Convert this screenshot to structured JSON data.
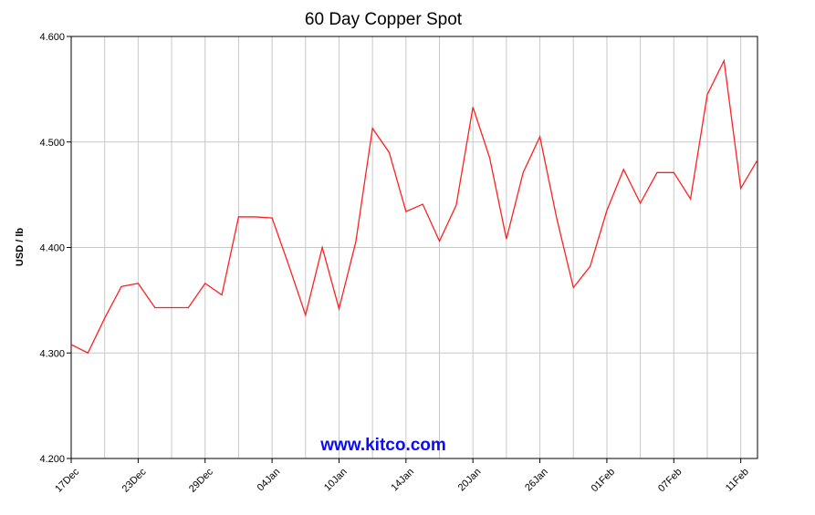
{
  "chart_data": {
    "type": "line",
    "title": "60 Day Copper Spot",
    "y_label": "USD / lb",
    "annotation": "www.kitco.com",
    "categories": [
      "17Dec",
      null,
      null,
      null,
      "23Dec",
      null,
      null,
      null,
      "29Dec",
      null,
      null,
      null,
      "04Jan",
      null,
      null,
      null,
      "10Jan",
      null,
      null,
      null,
      "14Jan",
      null,
      null,
      null,
      "20Jan",
      null,
      null,
      null,
      "26Jan",
      null,
      null,
      null,
      "01Feb",
      null,
      null,
      null,
      "07Feb",
      null,
      null,
      null,
      "11Feb",
      null
    ],
    "series": [
      {
        "name": "Copper",
        "color": "#ff2020",
        "values": [
          4.308,
          4.3,
          4.333,
          4.363,
          4.366,
          4.343,
          4.343,
          4.343,
          4.366,
          4.355,
          4.429,
          4.429,
          4.428,
          4.383,
          4.336,
          4.4,
          4.342,
          4.405,
          4.513,
          4.49,
          4.434,
          4.441,
          4.406,
          4.44,
          4.533,
          4.485,
          4.408,
          4.471,
          4.505,
          4.428,
          4.362,
          4.382,
          4.435,
          4.474,
          4.442,
          4.471,
          4.471,
          4.446,
          4.545,
          4.577,
          4.456,
          4.483
        ]
      }
    ],
    "ylim": [
      4.2,
      4.6
    ],
    "yticks": [
      {
        "value": 4.2,
        "label": "4.200"
      },
      {
        "value": 4.3,
        "label": "4.300"
      },
      {
        "value": 4.4,
        "label": "4.400"
      },
      {
        "value": 4.5,
        "label": "4.500"
      },
      {
        "value": 4.6,
        "label": "4.600"
      }
    ],
    "grid": true
  }
}
